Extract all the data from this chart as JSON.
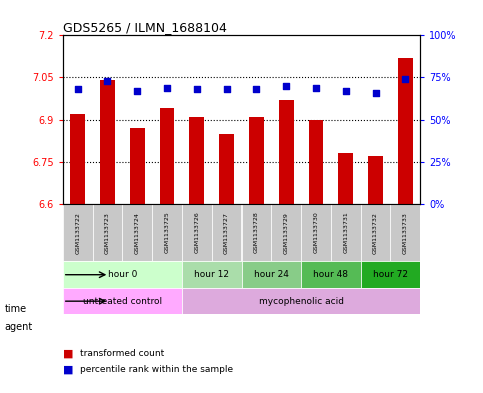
{
  "title": "GDS5265 / ILMN_1688104",
  "samples": [
    "GSM1133722",
    "GSM1133723",
    "GSM1133724",
    "GSM1133725",
    "GSM1133726",
    "GSM1133727",
    "GSM1133728",
    "GSM1133729",
    "GSM1133730",
    "GSM1133731",
    "GSM1133732",
    "GSM1133733"
  ],
  "bar_values": [
    6.92,
    7.04,
    6.87,
    6.94,
    6.91,
    6.85,
    6.91,
    6.97,
    6.9,
    6.78,
    6.77,
    7.12
  ],
  "percentile_values": [
    68,
    73,
    67,
    69,
    68,
    68,
    68,
    70,
    69,
    67,
    66,
    74
  ],
  "bar_color": "#cc0000",
  "percentile_color": "#0000cc",
  "ylim_left": [
    6.6,
    7.2
  ],
  "ylim_right": [
    0,
    100
  ],
  "yticks_left": [
    6.6,
    6.75,
    6.9,
    7.05,
    7.2
  ],
  "yticks_right": [
    0,
    25,
    50,
    75,
    100
  ],
  "ytick_labels_right": [
    "0%",
    "25%",
    "50%",
    "75%",
    "100%"
  ],
  "hlines": [
    6.75,
    6.9,
    7.05
  ],
  "time_groups": [
    {
      "label": "hour 0",
      "start": 0,
      "end": 3,
      "color": "#ccffcc"
    },
    {
      "label": "hour 12",
      "start": 4,
      "end": 5,
      "color": "#aaddaa"
    },
    {
      "label": "hour 24",
      "start": 6,
      "end": 7,
      "color": "#88cc88"
    },
    {
      "label": "hour 48",
      "start": 8,
      "end": 9,
      "color": "#55bb55"
    },
    {
      "label": "hour 72",
      "start": 10,
      "end": 11,
      "color": "#22aa22"
    }
  ],
  "agent_groups": [
    {
      "label": "untreated control",
      "start": 0,
      "end": 3,
      "color": "#ffaaff"
    },
    {
      "label": "mycophenolic acid",
      "start": 4,
      "end": 11,
      "color": "#ddaadd"
    }
  ],
  "legend_bar_label": "transformed count",
  "legend_dot_label": "percentile rank within the sample",
  "time_label": "time",
  "agent_label": "agent",
  "bar_base": 6.6,
  "background_color": "#ffffff",
  "plot_bg": "#ffffff"
}
